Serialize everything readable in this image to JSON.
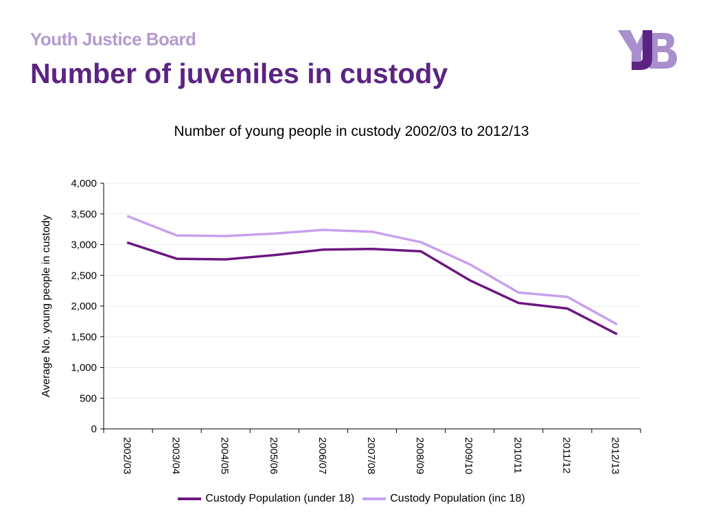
{
  "header": {
    "org_name": "Youth Justice Board",
    "title": "Number of juveniles in custody",
    "logo_text": "YJB"
  },
  "colors": {
    "dark_purple": "#6d1580",
    "light_purple": "#c7a0ee",
    "org_name": "#b39bd0",
    "title": "#5b2483",
    "logo_light": "#a98fcd",
    "logo_dark": "#5b2483"
  },
  "chart_data": {
    "type": "line",
    "title": "Number of young people in custody 2002/03 to 2012/13",
    "xlabel": "",
    "ylabel": "Average No. young people in custody",
    "ylim": [
      0,
      4000
    ],
    "yticks": [
      0,
      500,
      1000,
      1500,
      2000,
      2500,
      3000,
      3500,
      4000
    ],
    "ytick_labels": [
      "0",
      "500",
      "1,000",
      "1,500",
      "2,000",
      "2,500",
      "3,000",
      "3,500",
      "4,000"
    ],
    "categories": [
      "2002/03",
      "2003/04",
      "2004/05",
      "2005/06",
      "2006/07",
      "2007/08",
      "2008/09",
      "2009/10",
      "2010/11",
      "2011/12",
      "2012/13"
    ],
    "grid": true,
    "legend_position": "bottom",
    "series": [
      {
        "name": "Custody Population (under 18)",
        "color": "#6d1580",
        "values": [
          3030,
          2770,
          2760,
          2830,
          2920,
          2930,
          2890,
          2420,
          2050,
          1960,
          1550
        ]
      },
      {
        "name": "Custody Population (inc 18)",
        "color": "#c7a0ee",
        "values": [
          3460,
          3150,
          3140,
          3180,
          3240,
          3210,
          3040,
          2680,
          2220,
          2150,
          1710
        ]
      }
    ]
  }
}
